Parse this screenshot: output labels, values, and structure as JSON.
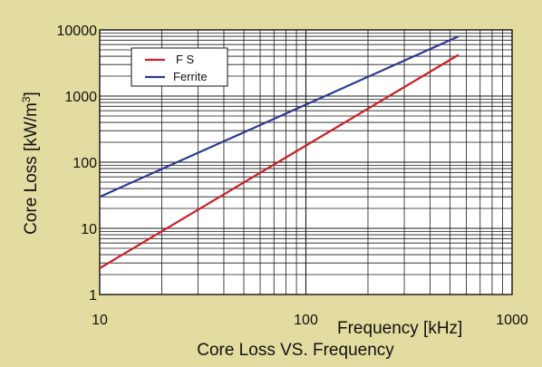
{
  "chart_data": {
    "type": "line",
    "title": "Core Loss VS. Frequency",
    "xlabel": "Frequency [kHz]",
    "ylabel_main": "Core Loss [kW/m",
    "ylabel_sup": "3",
    "ylabel_close": "]",
    "xscale": "log",
    "yscale": "log",
    "xlim": [
      10,
      1000
    ],
    "ylim": [
      1,
      10000
    ],
    "x_ticks": [
      10,
      100,
      1000
    ],
    "x_tick_labels": [
      "10",
      "100",
      "1000"
    ],
    "y_ticks": [
      1,
      10,
      100,
      1000,
      10000
    ],
    "y_tick_labels": [
      "1",
      "10",
      "100",
      "1000",
      "10000"
    ],
    "grid": true,
    "legend_position": "top-left",
    "series": [
      {
        "name": "F S",
        "color": "#cc1f2a",
        "x": [
          10,
          550
        ],
        "y": [
          2.5,
          4200
        ]
      },
      {
        "name": "Ferrite",
        "color": "#2b3a8f",
        "x": [
          10,
          550
        ],
        "y": [
          30,
          8000
        ]
      }
    ]
  },
  "colors": {
    "background": "#e3dca0",
    "plot_background": "#ffffff",
    "grid": "#1a1a1a"
  }
}
